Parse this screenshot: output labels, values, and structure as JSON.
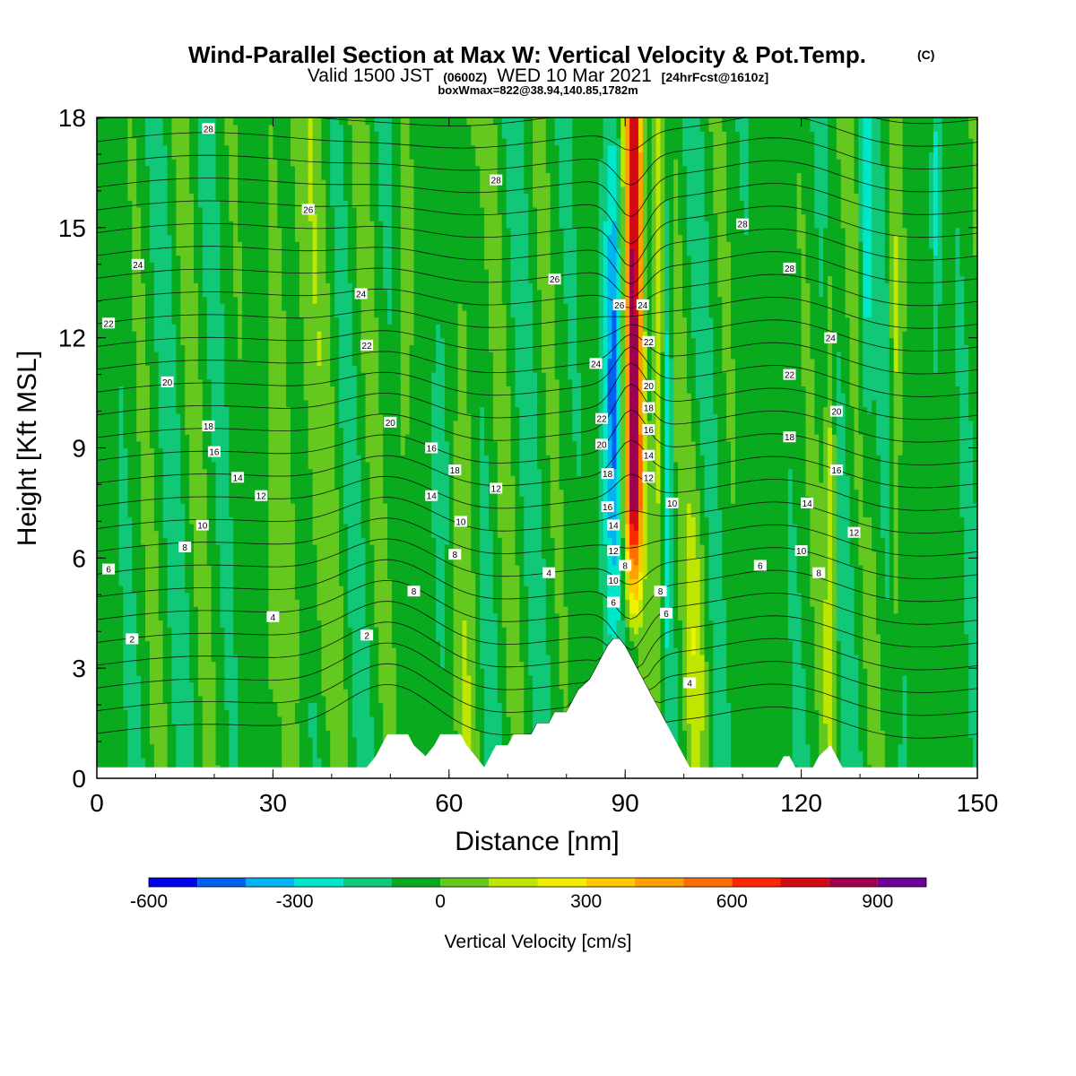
{
  "chart_data": {
    "type": "heatmap",
    "title": "Wind-Parallel Section at Max W: Vertical Velocity & Pot.Temp.",
    "title_mark": "(C)",
    "subtitle_prefix": "Valid 1500 JST",
    "subtitle_utc": "(0600Z)",
    "subtitle_date": "WED 10 Mar 2021",
    "subtitle_forecast": "[24hrFcst@1610z]",
    "subtitle_box": "boxWmax=822@38.94,140.85,1782m",
    "xlabel": "Distance [nm]",
    "ylabel": "Height [Kft MSL]",
    "xlim": [
      0,
      150
    ],
    "ylim": [
      0,
      18
    ],
    "x_ticks": [
      "0",
      "30",
      "60",
      "90",
      "120",
      "150"
    ],
    "y_ticks": [
      "0",
      "3",
      "6",
      "9",
      "12",
      "15",
      "18"
    ],
    "colorbar": {
      "label": "Vertical Velocity [cm/s]",
      "range": [
        -600,
        1000
      ],
      "tick_labels": [
        "-600",
        "-300",
        "0",
        "300",
        "600",
        "900"
      ],
      "tick_values": [
        -600,
        -300,
        0,
        300,
        600,
        900
      ],
      "bins": [
        {
          "from": -600,
          "to": -500,
          "color": "#0000f0"
        },
        {
          "from": -500,
          "to": -400,
          "color": "#0060f0"
        },
        {
          "from": -400,
          "to": -300,
          "color": "#00b4f0"
        },
        {
          "from": -300,
          "to": -200,
          "color": "#00e6c8"
        },
        {
          "from": -200,
          "to": -100,
          "color": "#10c878"
        },
        {
          "from": -100,
          "to": 0,
          "color": "#0aaa1e"
        },
        {
          "from": 0,
          "to": 100,
          "color": "#64c81e"
        },
        {
          "from": 100,
          "to": 200,
          "color": "#bee600"
        },
        {
          "from": 200,
          "to": 300,
          "color": "#f0f000"
        },
        {
          "from": 300,
          "to": 400,
          "color": "#ffc800"
        },
        {
          "from": 400,
          "to": 500,
          "color": "#ffa000"
        },
        {
          "from": 500,
          "to": 600,
          "color": "#ff6e00"
        },
        {
          "from": 600,
          "to": 700,
          "color": "#ff2800"
        },
        {
          "from": 700,
          "to": 800,
          "color": "#d20a14"
        },
        {
          "from": 800,
          "to": 900,
          "color": "#a00050"
        },
        {
          "from": 900,
          "to": 1000,
          "color": "#6e0096"
        }
      ]
    },
    "contour_variable": "potential temperature",
    "contour_labels": [
      {
        "text": "28",
        "x": 19,
        "y": 17.7
      },
      {
        "text": "26",
        "x": 36,
        "y": 15.5
      },
      {
        "text": "24",
        "x": 7,
        "y": 14.0
      },
      {
        "text": "22",
        "x": 2,
        "y": 12.4
      },
      {
        "text": "20",
        "x": 12,
        "y": 10.8
      },
      {
        "text": "18",
        "x": 19,
        "y": 9.6
      },
      {
        "text": "16",
        "x": 20,
        "y": 8.9
      },
      {
        "text": "14",
        "x": 24,
        "y": 8.2
      },
      {
        "text": "12",
        "x": 28,
        "y": 7.7
      },
      {
        "text": "10",
        "x": 18,
        "y": 6.9
      },
      {
        "text": "8",
        "x": 15,
        "y": 6.3
      },
      {
        "text": "6",
        "x": 2,
        "y": 5.7
      },
      {
        "text": "4",
        "x": 30,
        "y": 4.4
      },
      {
        "text": "2",
        "x": 6,
        "y": 3.8
      },
      {
        "text": "24",
        "x": 45,
        "y": 13.2
      },
      {
        "text": "22",
        "x": 46,
        "y": 11.8
      },
      {
        "text": "20",
        "x": 50,
        "y": 9.7
      },
      {
        "text": "18",
        "x": 61,
        "y": 8.4
      },
      {
        "text": "16",
        "x": 57,
        "y": 9.0
      },
      {
        "text": "14",
        "x": 57,
        "y": 7.7
      },
      {
        "text": "12",
        "x": 68,
        "y": 7.9
      },
      {
        "text": "10",
        "x": 62,
        "y": 7.0
      },
      {
        "text": "8",
        "x": 61,
        "y": 6.1
      },
      {
        "text": "8",
        "x": 54,
        "y": 5.1
      },
      {
        "text": "4",
        "x": 77,
        "y": 5.6
      },
      {
        "text": "2",
        "x": 46,
        "y": 3.9
      },
      {
        "text": "28",
        "x": 68,
        "y": 16.3
      },
      {
        "text": "26",
        "x": 78,
        "y": 13.6
      },
      {
        "text": "26",
        "x": 89,
        "y": 12.9
      },
      {
        "text": "24",
        "x": 93,
        "y": 12.9
      },
      {
        "text": "24",
        "x": 85,
        "y": 11.3
      },
      {
        "text": "22",
        "x": 94,
        "y": 11.9
      },
      {
        "text": "22",
        "x": 86,
        "y": 9.8
      },
      {
        "text": "20",
        "x": 86,
        "y": 9.1
      },
      {
        "text": "20",
        "x": 94,
        "y": 10.7
      },
      {
        "text": "18",
        "x": 87,
        "y": 8.3
      },
      {
        "text": "18",
        "x": 94,
        "y": 10.1
      },
      {
        "text": "16",
        "x": 87,
        "y": 7.4
      },
      {
        "text": "16",
        "x": 94,
        "y": 9.5
      },
      {
        "text": "14",
        "x": 88,
        "y": 6.9
      },
      {
        "text": "14",
        "x": 94,
        "y": 8.8
      },
      {
        "text": "12",
        "x": 88,
        "y": 6.2
      },
      {
        "text": "12",
        "x": 94,
        "y": 8.2
      },
      {
        "text": "10",
        "x": 88,
        "y": 5.4
      },
      {
        "text": "10",
        "x": 98,
        "y": 7.5
      },
      {
        "text": "8",
        "x": 90,
        "y": 5.8
      },
      {
        "text": "8",
        "x": 96,
        "y": 5.1
      },
      {
        "text": "6",
        "x": 88,
        "y": 4.8
      },
      {
        "text": "6",
        "x": 97,
        "y": 4.5
      },
      {
        "text": "4",
        "x": 101,
        "y": 2.6
      },
      {
        "text": "28",
        "x": 110,
        "y": 15.1
      },
      {
        "text": "28",
        "x": 118,
        "y": 13.9
      },
      {
        "text": "22",
        "x": 118,
        "y": 11.0
      },
      {
        "text": "24",
        "x": 125,
        "y": 12.0
      },
      {
        "text": "20",
        "x": 126,
        "y": 10.0
      },
      {
        "text": "18",
        "x": 118,
        "y": 9.3
      },
      {
        "text": "16",
        "x": 126,
        "y": 8.4
      },
      {
        "text": "14",
        "x": 121,
        "y": 7.5
      },
      {
        "text": "12",
        "x": 129,
        "y": 6.7
      },
      {
        "text": "10",
        "x": 120,
        "y": 6.2
      },
      {
        "text": "8",
        "x": 123,
        "y": 5.6
      },
      {
        "text": "6",
        "x": 113,
        "y": 5.8
      }
    ]
  }
}
